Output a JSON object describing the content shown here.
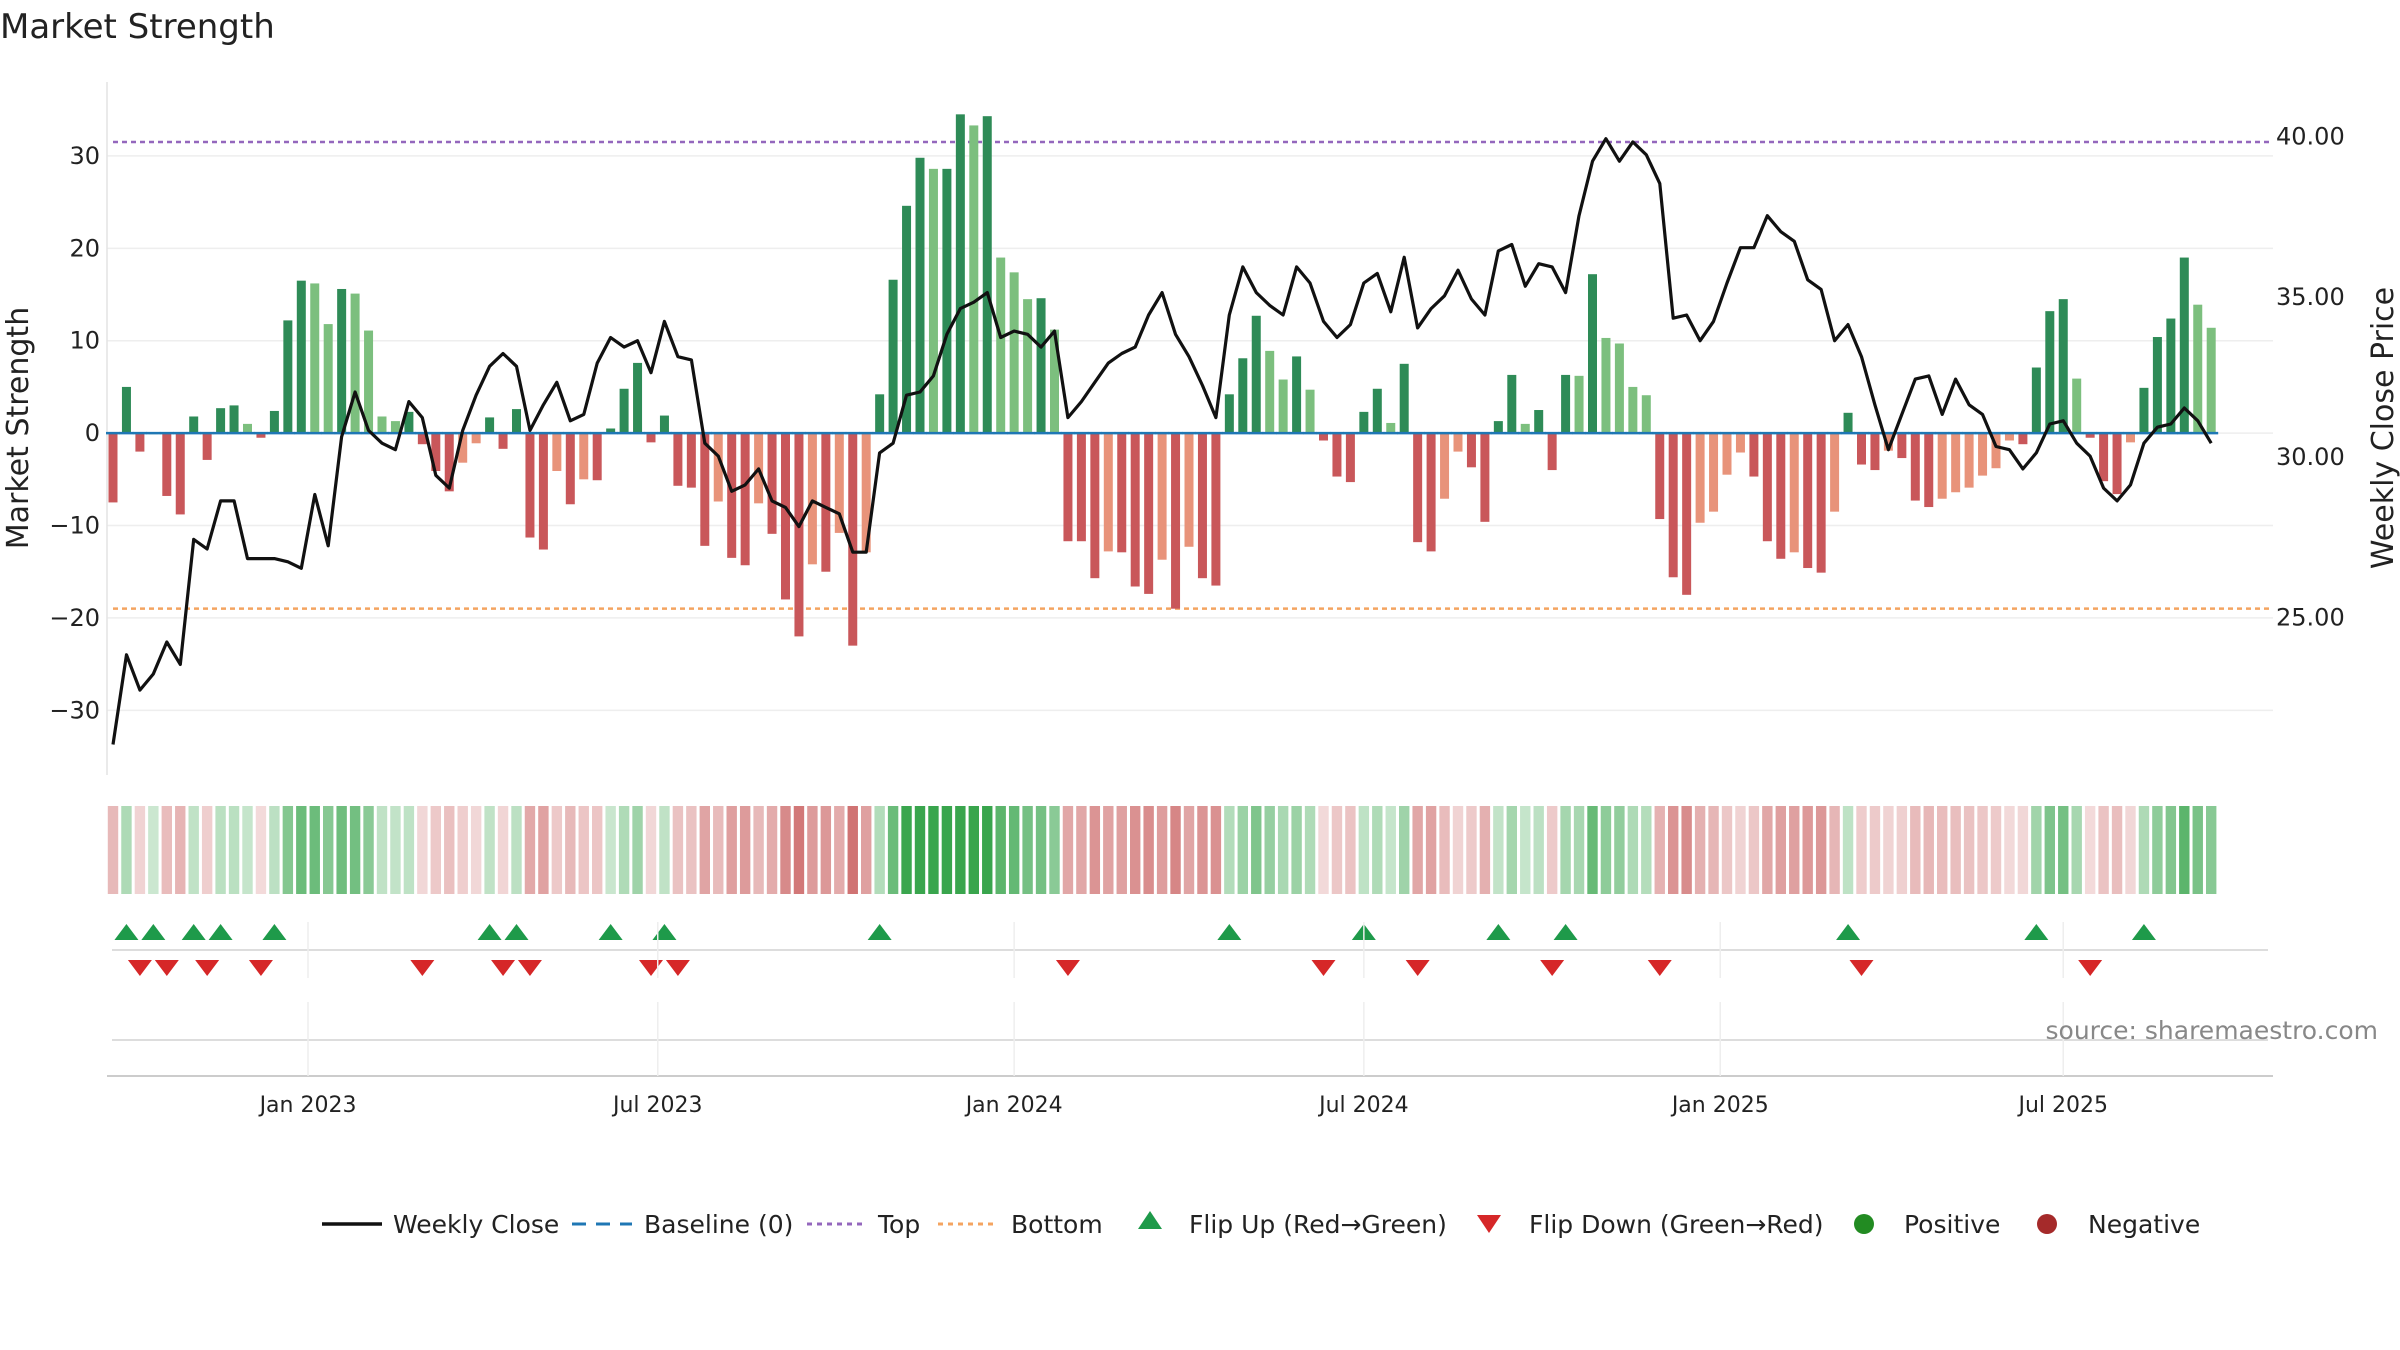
{
  "chart_data": {
    "type": "bar",
    "title": "Market Strength",
    "ylabel": "Market Strength",
    "y2label": "Weekly Close Price",
    "source": "source: sharemaestro.com",
    "ylim": [
      -37,
      38
    ],
    "y2lim": [
      20.05,
      41.67
    ],
    "yticks": [
      30,
      20,
      10,
      0,
      -10,
      -20,
      -30
    ],
    "ytick_labels": [
      "30",
      "20",
      "10",
      "0",
      "−10",
      "−20",
      "−30"
    ],
    "y2ticks": [
      40,
      35,
      30,
      25
    ],
    "y2tick_labels": [
      "40.00",
      "35.00",
      "30.00",
      "25.00"
    ],
    "top_level": 31.5,
    "bottom_level": -19,
    "baseline": 0,
    "x_ticks": [
      {
        "week": 14.5,
        "label": "Jan 2023"
      },
      {
        "week": 40.5,
        "label": "Jul 2023"
      },
      {
        "week": 67,
        "label": "Jan 2024"
      },
      {
        "week": 93,
        "label": "Jul 2024"
      },
      {
        "week": 119.5,
        "label": "Jan 2025"
      },
      {
        "week": 145,
        "label": "Jul 2025"
      }
    ],
    "strength": [
      -7.5,
      5,
      -2,
      0,
      -6.8,
      -8.8,
      1.8,
      -2.9,
      2.7,
      3,
      1,
      -0.5,
      2.4,
      12.2,
      16.5,
      16.2,
      11.8,
      15.6,
      15.1,
      11.1,
      1.8,
      1.3,
      2.3,
      -1.2,
      -4.1,
      -6.3,
      -3.2,
      -1.1,
      1.7,
      -1.7,
      2.6,
      -11.3,
      -12.6,
      -4.1,
      -7.7,
      -5,
      -5.1,
      0.5,
      4.8,
      7.6,
      -1,
      1.9,
      -5.7,
      -5.9,
      -12.2,
      -7.4,
      -13.5,
      -14.3,
      -7.6,
      -10.9,
      -18,
      -22,
      -14.2,
      -15,
      -10.8,
      -23,
      -12.9,
      4.2,
      16.6,
      24.6,
      29.8,
      28.6,
      28.6,
      34.5,
      33.3,
      34.3,
      19,
      17.4,
      14.5,
      14.6,
      11.2,
      -11.7,
      -11.7,
      -15.7,
      -12.8,
      -12.9,
      -16.6,
      -17.4,
      -13.7,
      -19,
      -12.3,
      -15.7,
      -16.5,
      4.2,
      8.1,
      12.7,
      8.9,
      5.8,
      8.3,
      4.7,
      -0.8,
      -4.7,
      -5.3,
      2.3,
      4.8,
      1.1,
      7.5,
      -11.8,
      -12.8,
      -7.1,
      -2,
      -3.7,
      -9.6,
      1.3,
      6.3,
      1,
      2.5,
      -4,
      6.3,
      6.2,
      17.2,
      10.3,
      9.7,
      5,
      4.1,
      -9.3,
      -15.6,
      -17.5,
      -9.7,
      -8.5,
      -4.5,
      -2.1,
      -4.7,
      -11.7,
      -13.6,
      -12.9,
      -14.6,
      -15.1,
      -8.5,
      2.2,
      -3.4,
      -4,
      -1.9,
      -2.7,
      -7.3,
      -8,
      -7.1,
      -6.4,
      -5.9,
      -4.6,
      -3.8,
      -0.8,
      -1.2,
      7.1,
      13.2,
      14.5,
      5.9,
      -0.5,
      -5.2,
      -6.6,
      -1,
      4.9,
      10.4,
      12.4,
      19,
      13.9,
      11.4
    ],
    "weekly_close": [
      21,
      23.8,
      22.7,
      23.2,
      24.2,
      23.5,
      27.4,
      27.1,
      28.6,
      28.6,
      26.8,
      26.8,
      26.8,
      26.7,
      26.5,
      28.8,
      27.2,
      30.6,
      32,
      30.8,
      30.4,
      30.2,
      31.7,
      31.2,
      29.4,
      29,
      30.8,
      31.9,
      32.8,
      33.2,
      32.8,
      30.8,
      31.6,
      32.3,
      31.1,
      31.3,
      32.9,
      33.7,
      33.4,
      33.6,
      32.6,
      34.2,
      33.1,
      33,
      30.4,
      30,
      28.9,
      29.1,
      29.6,
      28.6,
      28.4,
      27.8,
      28.6,
      28.4,
      28.2,
      27,
      27,
      30.1,
      30.4,
      31.9,
      32,
      32.5,
      33.8,
      34.6,
      34.8,
      35.1,
      33.7,
      33.9,
      33.8,
      33.4,
      33.9,
      31.2,
      31.7,
      32.3,
      32.9,
      33.2,
      33.4,
      34.4,
      35.1,
      33.8,
      33.1,
      32.2,
      31.2,
      34.4,
      35.9,
      35.1,
      34.7,
      34.4,
      35.9,
      35.4,
      34.2,
      33.7,
      34.1,
      35.4,
      35.7,
      34.5,
      36.2,
      34,
      34.6,
      35,
      35.8,
      34.9,
      34.4,
      36.4,
      36.6,
      35.3,
      36,
      35.9,
      35.1,
      37.5,
      39.2,
      39.9,
      39.2,
      39.8,
      39.4,
      38.5,
      34.3,
      34.4,
      33.6,
      34.2,
      35.4,
      36.5,
      36.5,
      37.5,
      37,
      36.7,
      35.5,
      35.2,
      33.6,
      34.1,
      33.1,
      31.6,
      30.2,
      31.3,
      32.4,
      32.5,
      31.3,
      32.4,
      31.6,
      31.3,
      30.3,
      30.2,
      29.6,
      30.1,
      31,
      31.1,
      30.4,
      30,
      29,
      28.6,
      29.1,
      30.4,
      30.9,
      31,
      31.5,
      31.1,
      30.4
    ]
  },
  "legend": [
    {
      "label": "Weekly Close"
    },
    {
      "label": "Baseline (0)"
    },
    {
      "label": "Top"
    },
    {
      "label": "Bottom"
    },
    {
      "label": "Flip Up (Red→Green)"
    },
    {
      "label": "Flip Down (Green→Red)"
    },
    {
      "label": "Positive"
    },
    {
      "label": "Negative"
    }
  ],
  "colors": {
    "bar_green_strong": "#2e8b57",
    "bar_green_light": "#7cbf7e",
    "bar_red_strong": "#c9575a",
    "bar_red_light": "#e8937a",
    "close_line": "#111111",
    "baseline": "#1f77b4",
    "top_line": "#9467bd",
    "bottom_line": "#f4a460",
    "flip_up": "#1e9a4a",
    "flip_down": "#d62728",
    "positive": "#228b22",
    "negative": "#a52a2a"
  }
}
